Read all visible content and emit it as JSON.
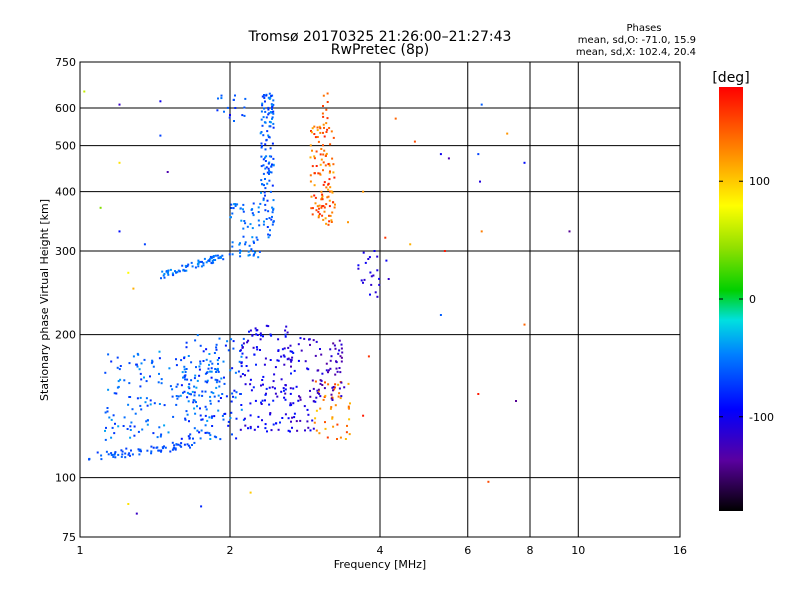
{
  "chart_data": {
    "type": "scatter",
    "title": "Tromsø 20170325 21:26:00–21:27:43",
    "subtitle": "RwPretec (8p)",
    "xlabel": "Frequency [MHz]",
    "ylabel": "Stationary phase Virtual Height [km]",
    "x_scale": "log",
    "y_scale": "log",
    "xlim": [
      1,
      16
    ],
    "ylim": [
      75,
      750
    ],
    "x_ticks": [
      "1",
      "2",
      "4",
      "6",
      "8",
      "10",
      "16"
    ],
    "y_ticks": [
      "75",
      "100",
      "200",
      "300",
      "400",
      "500",
      "600",
      "750"
    ],
    "grid": true,
    "stats": {
      "header": "Phases",
      "line1": "mean, sd,O: -71.0, 15.9",
      "line2": "mean, sd,X: 102.4, 20.4"
    },
    "colorbar": {
      "label": "[deg]",
      "range": [
        -180,
        180
      ],
      "ticks": [
        "100",
        "0",
        "-100"
      ],
      "tick_values": [
        100,
        0,
        -100
      ]
    },
    "clusters": [
      {
        "f": [
          1.04,
          1.7
        ],
        "h": [
          108,
          120
        ],
        "phase": [
          -75,
          -55
        ],
        "n": 70,
        "shape": "lowedge"
      },
      {
        "f": [
          1.12,
          1.9
        ],
        "h": [
          120,
          185
        ],
        "phase": [
          -80,
          -35
        ],
        "n": 180
      },
      {
        "f": [
          1.6,
          2.15
        ],
        "h": [
          120,
          200
        ],
        "phase": [
          -90,
          -40
        ],
        "n": 120
      },
      {
        "f": [
          2.1,
          2.7
        ],
        "h": [
          125,
          210
        ],
        "phase": [
          -120,
          -80
        ],
        "n": 130
      },
      {
        "f": [
          2.6,
          3.0
        ],
        "h": [
          125,
          200
        ],
        "phase": [
          -130,
          -90
        ],
        "n": 60
      },
      {
        "f": [
          2.95,
          3.5
        ],
        "h": [
          120,
          160
        ],
        "phase": [
          100,
          160
        ],
        "n": 45
      },
      {
        "f": [
          3.0,
          3.4
        ],
        "h": [
          145,
          195
        ],
        "phase": [
          -140,
          -105
        ],
        "n": 50
      },
      {
        "f": [
          1.45,
          2.0
        ],
        "h": [
          262,
          300
        ],
        "phase": [
          -70,
          -40
        ],
        "n": 70,
        "shape": "trace"
      },
      {
        "f": [
          2.0,
          2.3
        ],
        "h": [
          290,
          380
        ],
        "phase": [
          -70,
          -40
        ],
        "n": 60
      },
      {
        "f": [
          2.3,
          2.45
        ],
        "h": [
          320,
          650
        ],
        "phase": [
          -80,
          -40
        ],
        "n": 130
      },
      {
        "f": [
          1.85,
          2.15
        ],
        "h": [
          560,
          640
        ],
        "phase": [
          -80,
          -50
        ],
        "n": 16
      },
      {
        "f": [
          2.9,
          3.25
        ],
        "h": [
          340,
          560
        ],
        "phase": [
          110,
          170
        ],
        "n": 120
      },
      {
        "f": [
          3.05,
          3.2
        ],
        "h": [
          560,
          660
        ],
        "phase": [
          130,
          160
        ],
        "n": 8
      },
      {
        "f": [
          3.6,
          4.2
        ],
        "h": [
          240,
          300
        ],
        "phase": [
          -120,
          -95
        ],
        "n": 22
      }
    ],
    "points": [
      {
        "f": 1.02,
        "h": 650,
        "phase": 60
      },
      {
        "f": 1.2,
        "h": 610,
        "phase": -120
      },
      {
        "f": 1.45,
        "h": 620,
        "phase": -100
      },
      {
        "f": 1.45,
        "h": 525,
        "phase": -70
      },
      {
        "f": 1.5,
        "h": 440,
        "phase": -130
      },
      {
        "f": 1.2,
        "h": 460,
        "phase": 90
      },
      {
        "f": 1.1,
        "h": 370,
        "phase": 40
      },
      {
        "f": 1.2,
        "h": 330,
        "phase": -90
      },
      {
        "f": 1.35,
        "h": 310,
        "phase": -70
      },
      {
        "f": 1.25,
        "h": 270,
        "phase": 80
      },
      {
        "f": 1.28,
        "h": 250,
        "phase": 110
      },
      {
        "f": 1.25,
        "h": 88,
        "phase": 90
      },
      {
        "f": 1.3,
        "h": 84,
        "phase": -120
      },
      {
        "f": 1.75,
        "h": 87,
        "phase": -80
      },
      {
        "f": 2.0,
        "h": 580,
        "phase": -100
      },
      {
        "f": 4.3,
        "h": 570,
        "phase": 140
      },
      {
        "f": 4.7,
        "h": 510,
        "phase": 150
      },
      {
        "f": 5.3,
        "h": 480,
        "phase": -100
      },
      {
        "f": 5.5,
        "h": 470,
        "phase": -130
      },
      {
        "f": 6.4,
        "h": 610,
        "phase": -60
      },
      {
        "f": 6.3,
        "h": 480,
        "phase": -70
      },
      {
        "f": 6.35,
        "h": 420,
        "phase": -110
      },
      {
        "f": 7.2,
        "h": 530,
        "phase": 120
      },
      {
        "f": 7.8,
        "h": 460,
        "phase": -90
      },
      {
        "f": 9.6,
        "h": 330,
        "phase": -140
      },
      {
        "f": 6.4,
        "h": 330,
        "phase": 130
      },
      {
        "f": 3.9,
        "h": 300,
        "phase": -100
      },
      {
        "f": 4.1,
        "h": 320,
        "phase": 160
      },
      {
        "f": 4.6,
        "h": 310,
        "phase": 110
      },
      {
        "f": 5.4,
        "h": 300,
        "phase": 170
      },
      {
        "f": 5.3,
        "h": 220,
        "phase": -60
      },
      {
        "f": 7.8,
        "h": 210,
        "phase": 140
      },
      {
        "f": 6.6,
        "h": 98,
        "phase": 150
      },
      {
        "f": 7.5,
        "h": 145,
        "phase": -140
      },
      {
        "f": 6.3,
        "h": 150,
        "phase": 170
      },
      {
        "f": 3.7,
        "h": 135,
        "phase": 170
      },
      {
        "f": 2.2,
        "h": 93,
        "phase": 100
      },
      {
        "f": 3.8,
        "h": 180,
        "phase": 160
      },
      {
        "f": 3.7,
        "h": 400,
        "phase": 120
      },
      {
        "f": 3.45,
        "h": 345,
        "phase": 120
      }
    ]
  }
}
